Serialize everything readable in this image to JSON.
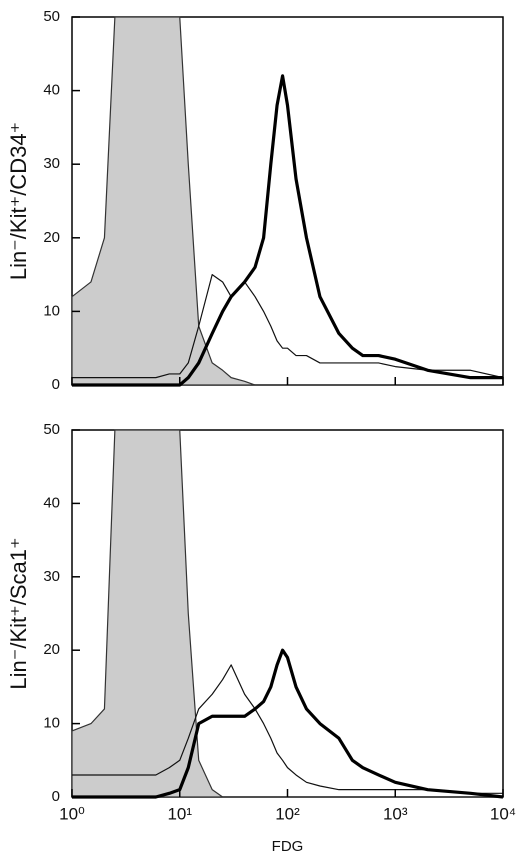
{
  "chart_data": [
    {
      "type": "line",
      "y_label": "Lin⁻/Kit⁺/CD34⁺",
      "log_x": true,
      "xlim": [
        1,
        10000
      ],
      "xticks": [
        1,
        10,
        100,
        1000,
        10000
      ],
      "ylim": [
        0,
        50
      ],
      "yticks": [
        0,
        10,
        20,
        30,
        40,
        50
      ],
      "x": [
        1,
        1.5,
        2,
        2.5,
        3,
        4,
        5,
        6,
        8,
        10,
        12,
        15,
        20,
        25,
        30,
        40,
        50,
        60,
        70,
        80,
        90,
        100,
        120,
        150,
        200,
        300,
        400,
        500,
        700,
        1000,
        2000,
        5000,
        10000
      ],
      "series": [
        {
          "color": "#cccccc",
          "fill": true,
          "line_width": 1.2,
          "values": [
            12,
            14,
            20,
            50,
            50,
            50,
            50,
            50,
            50,
            50,
            30,
            8,
            3,
            2,
            1,
            0.5,
            0,
            0,
            0,
            0,
            0,
            0,
            0,
            0,
            0,
            0,
            0,
            0,
            0,
            0,
            0,
            0,
            0
          ]
        },
        {
          "color": "#111111",
          "fill": false,
          "line_width": 1.2,
          "values": [
            1,
            1,
            1,
            1,
            1,
            1,
            1,
            1,
            1.5,
            1.5,
            3,
            8,
            15,
            14,
            12,
            14,
            12,
            10,
            8,
            6,
            5,
            5,
            4,
            4,
            3,
            3,
            3,
            3,
            3,
            2.5,
            2,
            2,
            1
          ]
        },
        {
          "color": "#000000",
          "fill": false,
          "line_width": 3.2,
          "values": [
            0,
            0,
            0,
            0,
            0,
            0,
            0,
            0,
            0,
            0,
            1,
            3,
            7,
            10,
            12,
            14,
            16,
            20,
            30,
            38,
            42,
            38,
            28,
            20,
            12,
            7,
            5,
            4,
            4,
            3.5,
            2,
            1,
            1
          ]
        }
      ]
    },
    {
      "type": "line",
      "y_label": "Lin⁻/Kit⁺/Sca1⁺",
      "x_label": "FDG",
      "log_x": true,
      "xlim": [
        1,
        10000
      ],
      "xticks": [
        {
          "value": 1,
          "label": "10⁰"
        },
        {
          "value": 10,
          "label": "10¹"
        },
        {
          "value": 100,
          "label": "10²"
        },
        {
          "value": 1000,
          "label": "10³"
        },
        {
          "value": 10000,
          "label": "10⁴"
        }
      ],
      "ylim": [
        0,
        50
      ],
      "yticks": [
        0,
        10,
        20,
        30,
        40,
        50
      ],
      "x": [
        1,
        1.5,
        2,
        2.5,
        3,
        4,
        5,
        6,
        8,
        10,
        12,
        15,
        20,
        25,
        30,
        40,
        50,
        60,
        70,
        80,
        90,
        100,
        120,
        150,
        200,
        300,
        400,
        500,
        700,
        1000,
        2000,
        5000,
        10000
      ],
      "series": [
        {
          "color": "#cccccc",
          "fill": true,
          "line_width": 1.2,
          "values": [
            9,
            10,
            12,
            50,
            50,
            50,
            50,
            50,
            50,
            50,
            25,
            5,
            1,
            0,
            0,
            0,
            0,
            0,
            0,
            0,
            0,
            0,
            0,
            0,
            0,
            0,
            0,
            0,
            0,
            0,
            0,
            0,
            0
          ]
        },
        {
          "color": "#111111",
          "fill": false,
          "line_width": 1.2,
          "values": [
            3,
            3,
            3,
            3,
            3,
            3,
            3,
            3,
            4,
            5,
            8,
            12,
            14,
            16,
            18,
            14,
            12,
            10,
            8,
            6,
            5,
            4,
            3,
            2,
            1.5,
            1,
            1,
            1,
            1,
            1,
            1,
            0.5,
            0.5
          ]
        },
        {
          "color": "#000000",
          "fill": false,
          "line_width": 3.2,
          "values": [
            0,
            0,
            0,
            0,
            0,
            0,
            0,
            0,
            0.5,
            1,
            4,
            10,
            11,
            11,
            11,
            11,
            12,
            13,
            15,
            18,
            20,
            19,
            15,
            12,
            10,
            8,
            5,
            4,
            3,
            2,
            1,
            0.5,
            0
          ]
        }
      ]
    }
  ]
}
